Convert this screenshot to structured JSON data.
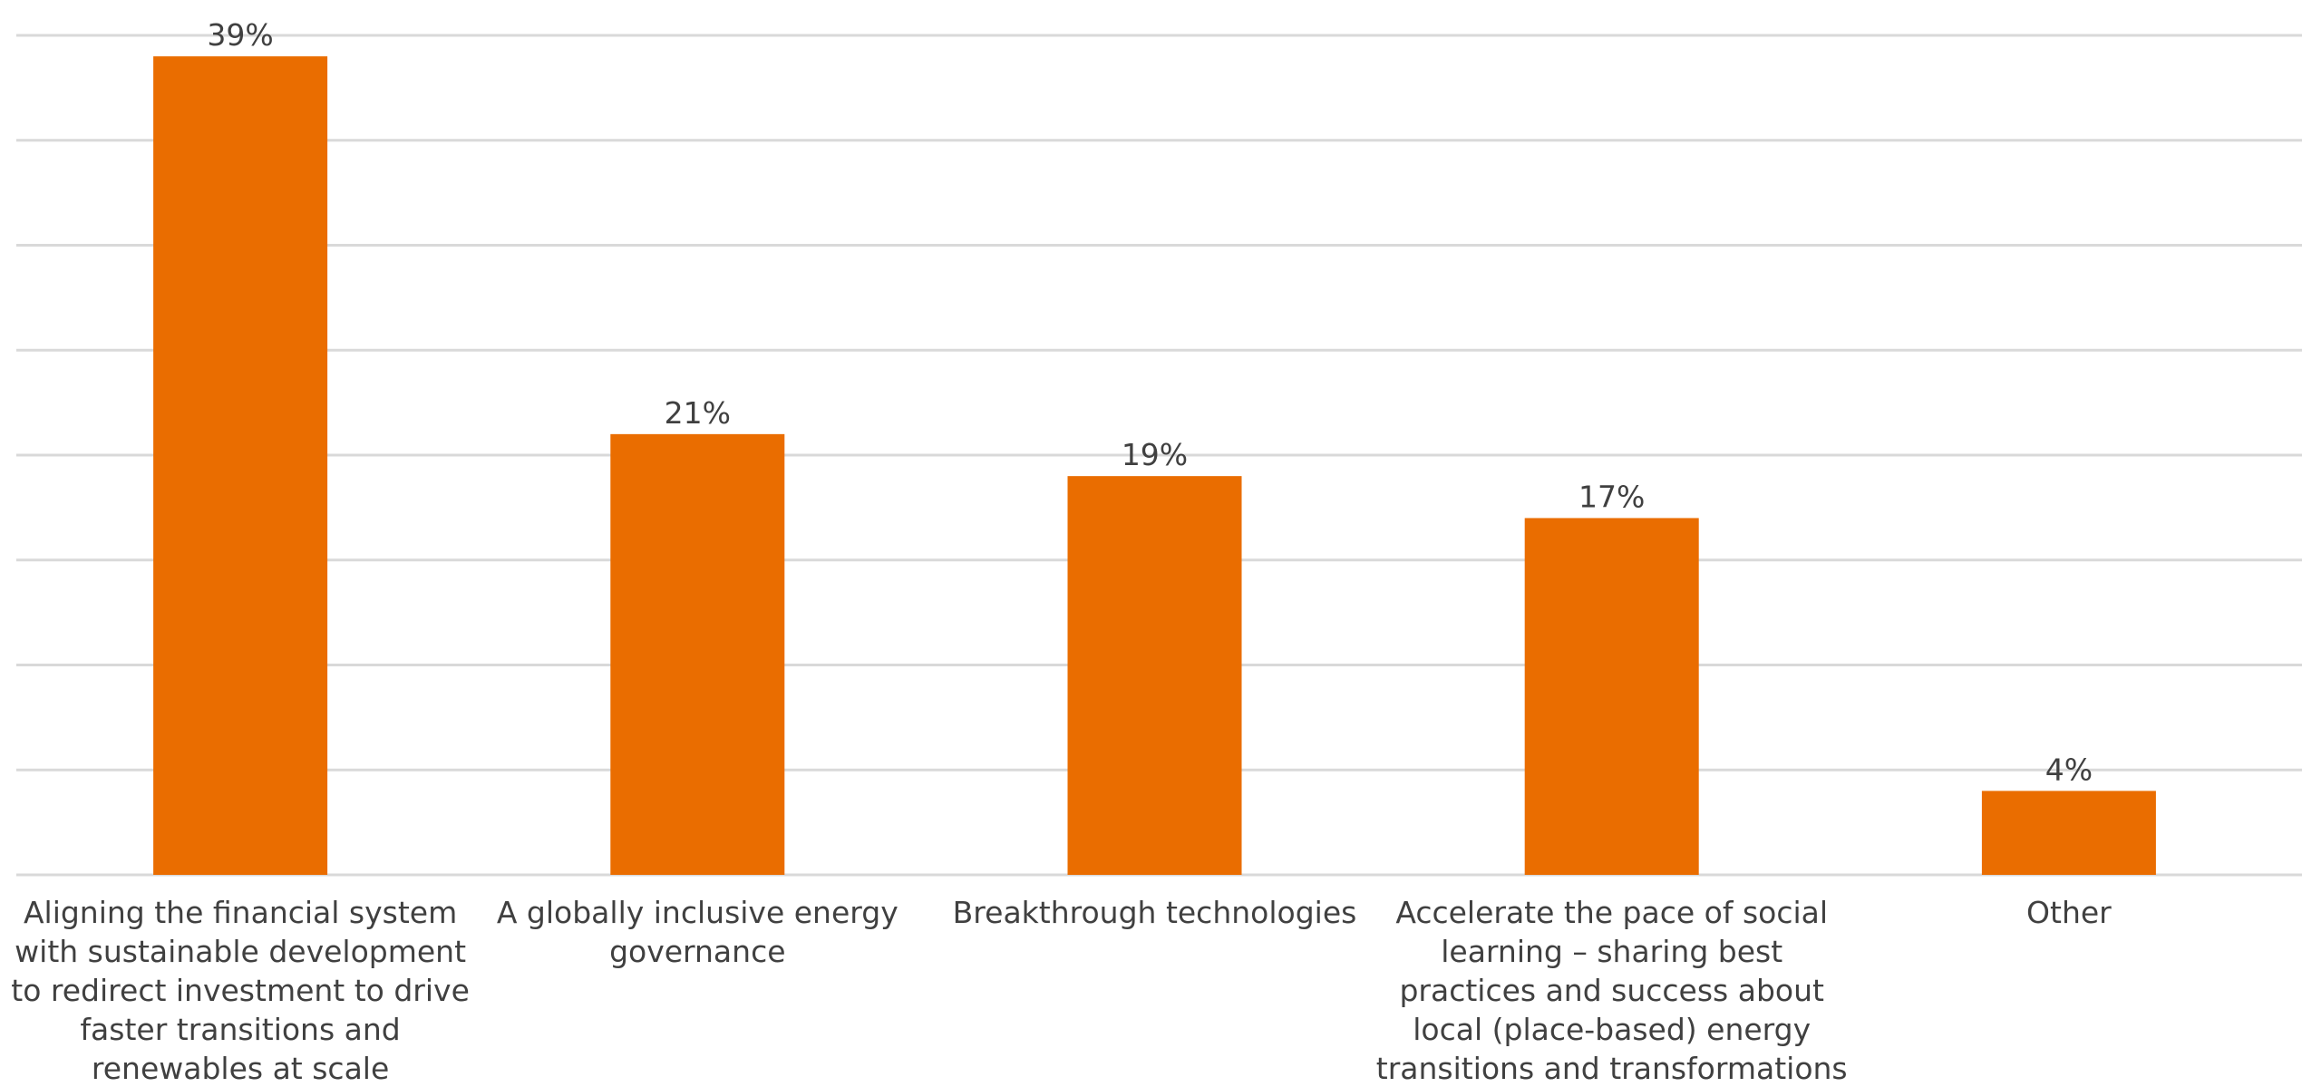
{
  "chart_data": {
    "type": "bar",
    "categories": [
      "Aligning the financial system with sustainable development to redirect investment to drive faster transitions and renewables at scale",
      "A globally inclusive energy governance",
      "Breakthrough technologies",
      "Accelerate the pace of social learning – sharing best practices and success about local (place-based) energy transitions and transformations",
      "Other"
    ],
    "category_lines": [
      [
        "Aligning the financial system",
        "with sustainable development",
        "to redirect investment to drive",
        "faster transitions and",
        "renewables at scale"
      ],
      [
        "A globally inclusive energy",
        "governance"
      ],
      [
        "Breakthrough technologies"
      ],
      [
        "Accelerate the pace of social",
        "learning – sharing best",
        "practices and success about",
        "local (place-based) energy",
        "transitions and transformations"
      ],
      [
        "Other"
      ]
    ],
    "values": [
      39,
      21,
      19,
      17,
      4
    ],
    "data_labels": [
      "39%",
      "21%",
      "19%",
      "17%",
      "4%"
    ],
    "ylim": [
      0,
      40
    ],
    "grid": true,
    "legend": "none",
    "bar_color": "#EA6D00",
    "title": "",
    "xlabel": "",
    "ylabel": ""
  }
}
